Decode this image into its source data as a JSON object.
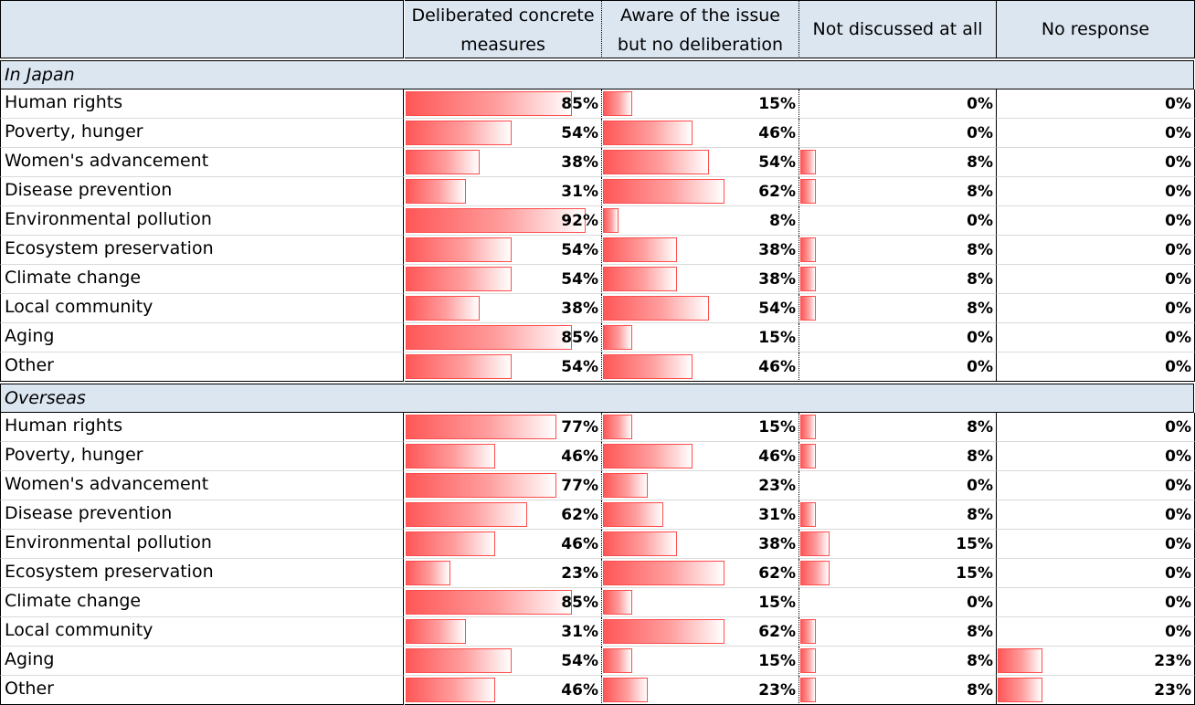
{
  "columns": [
    {
      "line1": "",
      "line2": ""
    },
    {
      "line1": "Deliberated concrete",
      "line2": "measures"
    },
    {
      "line1": "Aware of the issue",
      "line2": "but no deliberation"
    },
    {
      "line1": "Not discussed at all",
      "line2": ""
    },
    {
      "line1": "No response",
      "line2": ""
    }
  ],
  "sections": [
    {
      "title": "In Japan",
      "rows": [
        {
          "label": "Human rights",
          "values": [
            85,
            15,
            0,
            0
          ]
        },
        {
          "label": "Poverty, hunger",
          "values": [
            54,
            46,
            0,
            0
          ]
        },
        {
          "label": "Women's advancement",
          "values": [
            38,
            54,
            8,
            0
          ]
        },
        {
          "label": "Disease prevention",
          "values": [
            31,
            62,
            8,
            0
          ]
        },
        {
          "label": "Environmental pollution",
          "values": [
            92,
            8,
            0,
            0
          ]
        },
        {
          "label": "Ecosystem preservation",
          "values": [
            54,
            38,
            8,
            0
          ]
        },
        {
          "label": "Climate change",
          "values": [
            54,
            38,
            8,
            0
          ]
        },
        {
          "label": "Local community",
          "values": [
            38,
            54,
            8,
            0
          ]
        },
        {
          "label": "Aging",
          "values": [
            85,
            15,
            0,
            0
          ]
        },
        {
          "label": "Other",
          "values": [
            54,
            46,
            0,
            0
          ]
        }
      ]
    },
    {
      "title": "Overseas",
      "rows": [
        {
          "label": "Human rights",
          "values": [
            77,
            15,
            8,
            0
          ]
        },
        {
          "label": "Poverty, hunger",
          "values": [
            46,
            46,
            8,
            0
          ]
        },
        {
          "label": "Women's advancement",
          "values": [
            77,
            23,
            0,
            0
          ]
        },
        {
          "label": "Disease prevention",
          "values": [
            62,
            31,
            8,
            0
          ]
        },
        {
          "label": "Environmental pollution",
          "values": [
            46,
            38,
            15,
            0
          ]
        },
        {
          "label": "Ecosystem preservation",
          "values": [
            23,
            62,
            15,
            0
          ]
        },
        {
          "label": "Climate change",
          "values": [
            85,
            15,
            0,
            0
          ]
        },
        {
          "label": "Local community",
          "values": [
            31,
            62,
            8,
            0
          ]
        },
        {
          "label": "Aging",
          "values": [
            54,
            15,
            8,
            23
          ]
        },
        {
          "label": "Other",
          "values": [
            46,
            23,
            8,
            23
          ]
        }
      ]
    }
  ],
  "value_suffix": "%",
  "colors": {
    "header_background": "#dce6f1",
    "bar_fill": "#ff5757",
    "bar_border": "#ff4d4d",
    "grid_line": "#d9d9d9"
  }
}
